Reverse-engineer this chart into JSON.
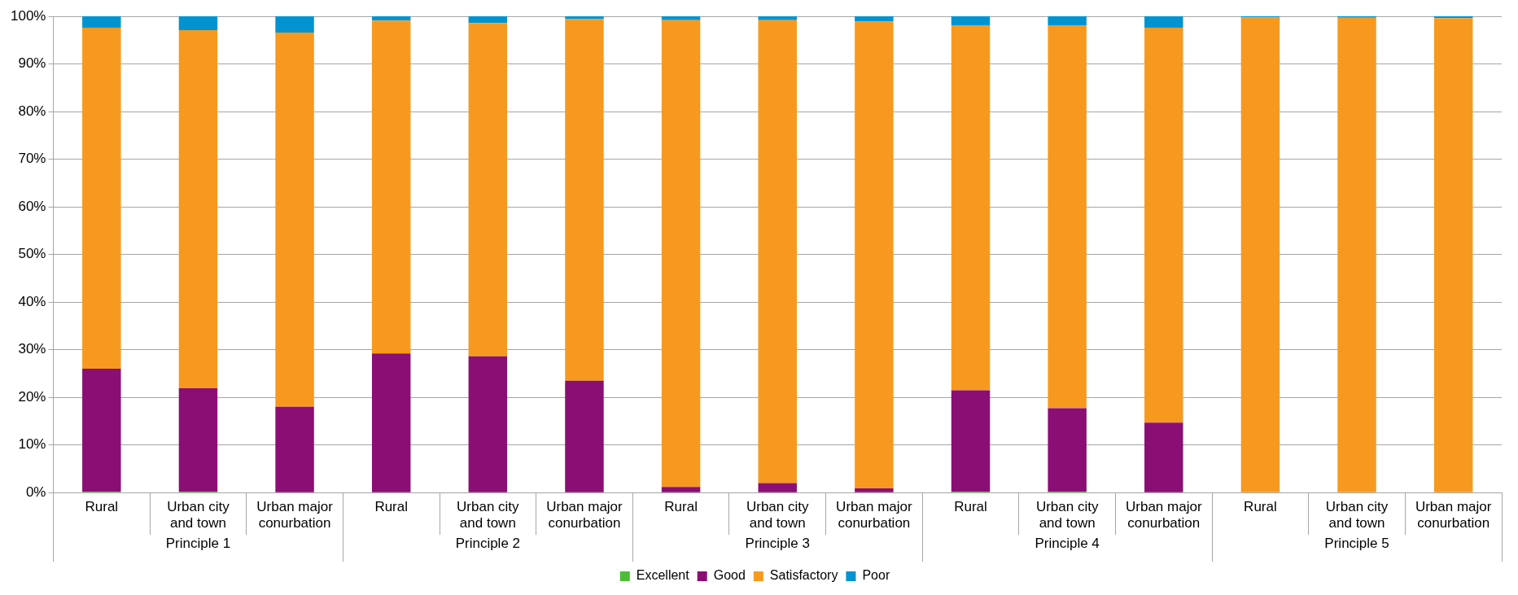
{
  "chart_data": {
    "type": "bar",
    "stacked": true,
    "categories": [
      "Rural",
      "Urban city and town",
      "Urban major conurbation",
      "Rural",
      "Urban city and town",
      "Urban major conurbation",
      "Rural",
      "Urban city and town",
      "Urban major conurbation",
      "Rural",
      "Urban city and town",
      "Urban major conurbation",
      "Rural",
      "Urban city and town",
      "Urban major conurbation"
    ],
    "series": [
      {
        "name": "Excellent",
        "color": "#4dbd38",
        "values": [
          0.2,
          0.2,
          0,
          0,
          0,
          0,
          0,
          0,
          0,
          0.2,
          0.2,
          0,
          0,
          0,
          0
        ]
      },
      {
        "name": "Good",
        "color": "#8b0e74",
        "values": [
          25.8,
          21.7,
          18.0,
          29.2,
          28.6,
          23.5,
          1.2,
          2.0,
          0.9,
          21.3,
          17.5,
          14.7,
          0,
          0,
          0
        ]
      },
      {
        "name": "Satisfactory",
        "color": "#f7991e",
        "values": [
          71.6,
          75.2,
          78.6,
          69.9,
          70.0,
          75.9,
          98.0,
          97.2,
          98.0,
          76.6,
          80.4,
          82.9,
          99.8,
          99.7,
          99.6
        ]
      },
      {
        "name": "Poor",
        "color": "#0093d0",
        "values": [
          2.4,
          2.9,
          3.4,
          0.9,
          1.4,
          0.6,
          0.8,
          0.8,
          1.1,
          1.9,
          1.9,
          2.4,
          0.2,
          0.3,
          0.4
        ]
      }
    ],
    "annotations": [
      "Principle 1",
      "Principle 2",
      "Principle 3",
      "Principle 4",
      "Principle 5"
    ],
    "ylim": [
      0,
      100
    ],
    "yticks": [
      {
        "value": 0,
        "label": "0%"
      },
      {
        "value": 10,
        "label": "10%"
      },
      {
        "value": 20,
        "label": "20%"
      },
      {
        "value": 30,
        "label": "30%"
      },
      {
        "value": 40,
        "label": "40%"
      },
      {
        "value": 50,
        "label": "50%"
      },
      {
        "value": 60,
        "label": "60%"
      },
      {
        "value": 70,
        "label": "70%"
      },
      {
        "value": 80,
        "label": "80%"
      },
      {
        "value": 90,
        "label": "90%"
      },
      {
        "value": 100,
        "label": "100%"
      }
    ],
    "grid": "y",
    "legend": "bottom"
  }
}
